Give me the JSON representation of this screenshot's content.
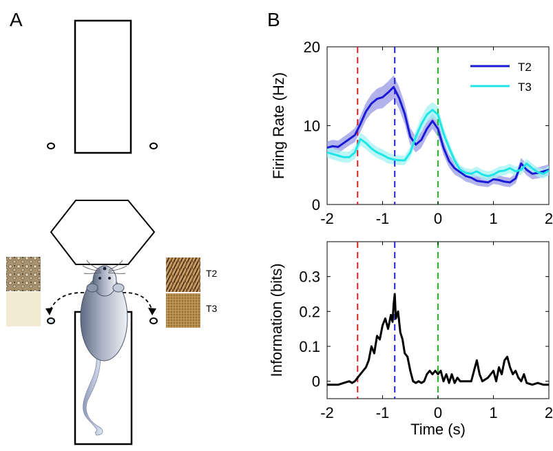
{
  "panels": {
    "a_label": "A",
    "b_label": "B"
  },
  "textures": {
    "t2_label": "T2",
    "t3_label": "T3"
  },
  "colors": {
    "t2": "#1a1ad6",
    "t2_band": "#9a9ae6",
    "t3": "#1ee6e6",
    "t3_band": "#a6f2f2",
    "info": "#000000",
    "marker_red": "#d62020",
    "marker_blue": "#2020d6",
    "marker_green": "#20c020"
  },
  "chart_data": [
    {
      "type": "line",
      "title": "",
      "xlabel": "",
      "ylabel": "Firing Rate (Hz)",
      "xlim": [
        -2,
        2
      ],
      "ylim": [
        0,
        20
      ],
      "xticks": [
        -2,
        -1,
        0,
        1,
        2
      ],
      "yticks": [
        0,
        10,
        20
      ],
      "grid": false,
      "legend": "top-right",
      "vlines": [
        -1.45,
        -0.78,
        0
      ],
      "x": [
        -2.0,
        -1.9,
        -1.8,
        -1.7,
        -1.6,
        -1.5,
        -1.4,
        -1.3,
        -1.2,
        -1.1,
        -1.0,
        -0.9,
        -0.8,
        -0.7,
        -0.6,
        -0.5,
        -0.4,
        -0.3,
        -0.2,
        -0.1,
        0.0,
        0.1,
        0.2,
        0.3,
        0.4,
        0.5,
        0.6,
        0.7,
        0.8,
        0.9,
        1.0,
        1.1,
        1.2,
        1.3,
        1.4,
        1.5,
        1.6,
        1.7,
        1.8,
        1.9,
        2.0
      ],
      "series": [
        {
          "name": "T2",
          "values": [
            7.2,
            7.4,
            7.3,
            7.8,
            8.3,
            8.8,
            10.2,
            11.8,
            12.8,
            13.4,
            13.6,
            14.2,
            14.9,
            13.5,
            11.5,
            8.6,
            7.6,
            8.2,
            9.6,
            10.6,
            9.6,
            7.2,
            5.5,
            4.6,
            4.1,
            3.6,
            3.4,
            3.0,
            2.9,
            2.8,
            3.2,
            3.1,
            2.9,
            2.8,
            3.3,
            5.2,
            4.4,
            3.9,
            4.0,
            4.2,
            4.4
          ],
          "band": [
            0.8,
            0.8,
            0.8,
            0.8,
            0.8,
            0.9,
            1.0,
            1.1,
            1.2,
            1.3,
            1.4,
            1.4,
            1.5,
            1.4,
            1.3,
            1.1,
            1.0,
            1.0,
            1.0,
            1.0,
            1.0,
            0.9,
            0.8,
            0.8,
            0.7,
            0.7,
            0.7,
            0.6,
            0.6,
            0.6,
            0.6,
            0.6,
            0.6,
            0.6,
            0.6,
            0.7,
            0.7,
            0.7,
            0.7,
            0.7,
            0.7
          ]
        },
        {
          "name": "T3",
          "values": [
            6.6,
            6.4,
            6.2,
            6.0,
            6.0,
            6.6,
            8.3,
            7.8,
            7.1,
            6.6,
            6.3,
            5.9,
            5.7,
            5.6,
            5.6,
            6.6,
            8.6,
            10.2,
            11.4,
            12.0,
            11.4,
            9.0,
            7.2,
            5.6,
            4.4,
            4.0,
            3.9,
            4.2,
            3.8,
            3.6,
            3.8,
            4.2,
            4.3,
            4.6,
            4.2,
            4.4,
            5.2,
            4.6,
            4.1,
            3.9,
            4.3
          ],
          "band": [
            0.7,
            0.7,
            0.7,
            0.7,
            0.7,
            0.8,
            0.8,
            0.8,
            0.7,
            0.7,
            0.7,
            0.7,
            0.6,
            0.6,
            0.6,
            0.7,
            0.8,
            0.9,
            1.0,
            1.0,
            1.0,
            0.8,
            0.7,
            0.6,
            0.6,
            0.6,
            0.6,
            0.6,
            0.6,
            0.6,
            0.6,
            0.6,
            0.6,
            0.6,
            0.6,
            0.6,
            0.6,
            0.6,
            0.6,
            0.6,
            0.6
          ]
        }
      ]
    },
    {
      "type": "line",
      "title": "",
      "xlabel": "Time (s)",
      "ylabel": "Information (bits)",
      "xlim": [
        -2,
        2
      ],
      "ylim": [
        -0.05,
        0.4
      ],
      "xticks": [
        -2,
        -1,
        0,
        1,
        2
      ],
      "yticks": [
        0,
        0.1,
        0.2,
        0.3
      ],
      "grid": false,
      "vlines": [
        -1.45,
        -0.78,
        0
      ],
      "x": [
        -2.0,
        -1.9,
        -1.8,
        -1.7,
        -1.6,
        -1.55,
        -1.5,
        -1.45,
        -1.4,
        -1.35,
        -1.3,
        -1.25,
        -1.2,
        -1.15,
        -1.1,
        -1.05,
        -1.0,
        -0.95,
        -0.9,
        -0.85,
        -0.82,
        -0.8,
        -0.78,
        -0.76,
        -0.72,
        -0.68,
        -0.64,
        -0.6,
        -0.55,
        -0.5,
        -0.45,
        -0.4,
        -0.35,
        -0.3,
        -0.25,
        -0.2,
        -0.15,
        -0.1,
        -0.05,
        0.0,
        0.05,
        0.1,
        0.15,
        0.2,
        0.25,
        0.3,
        0.35,
        0.4,
        0.5,
        0.6,
        0.65,
        0.7,
        0.75,
        0.8,
        0.9,
        1.0,
        1.05,
        1.1,
        1.15,
        1.2,
        1.25,
        1.3,
        1.35,
        1.4,
        1.45,
        1.5,
        1.55,
        1.6,
        1.7,
        1.8,
        1.9,
        2.0
      ],
      "series": [
        {
          "name": "",
          "values": [
            -0.01,
            -0.01,
            -0.01,
            -0.005,
            0.0,
            -0.005,
            0.0,
            0.01,
            0.02,
            0.03,
            0.04,
            0.06,
            0.1,
            0.08,
            0.13,
            0.12,
            0.16,
            0.18,
            0.15,
            0.19,
            0.17,
            0.22,
            0.25,
            0.18,
            0.2,
            0.14,
            0.12,
            0.08,
            0.07,
            0.03,
            0.0,
            -0.005,
            0.0,
            -0.005,
            0.0,
            0.02,
            0.03,
            0.02,
            0.03,
            0.02,
            0.03,
            0.0,
            0.02,
            -0.005,
            0.02,
            -0.005,
            0.01,
            0.0,
            0.0,
            0.0,
            0.03,
            0.06,
            0.02,
            0.0,
            0.01,
            0.03,
            0.0,
            0.04,
            0.02,
            0.06,
            0.07,
            0.04,
            0.02,
            0.03,
            0.01,
            0.0,
            0.02,
            -0.005,
            -0.01,
            -0.005,
            -0.01,
            -0.01
          ]
        }
      ]
    }
  ]
}
